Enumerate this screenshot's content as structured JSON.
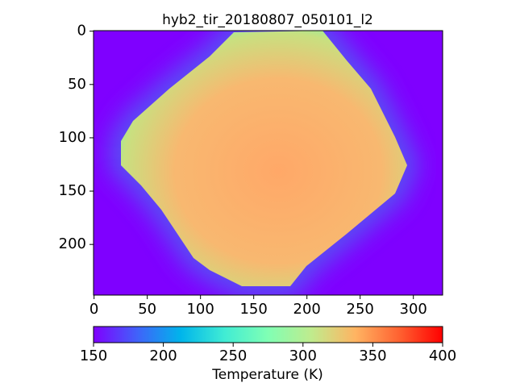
{
  "chart_data": {
    "type": "image",
    "title": "hyb2_tir_20180807_050101_l2",
    "xlim": [
      -0.5,
      327.5
    ],
    "xticks": [
      0,
      50,
      100,
      150,
      200,
      250,
      300
    ],
    "ylim": [
      247.5,
      -0.5
    ],
    "yticks": [
      0,
      50,
      100,
      150,
      200
    ],
    "colormap": "rainbow",
    "colorbar": {
      "label": "Temperature (K)",
      "lim": [
        150,
        400
      ],
      "ticks": [
        150,
        200,
        250,
        300,
        350,
        400
      ]
    }
  }
}
